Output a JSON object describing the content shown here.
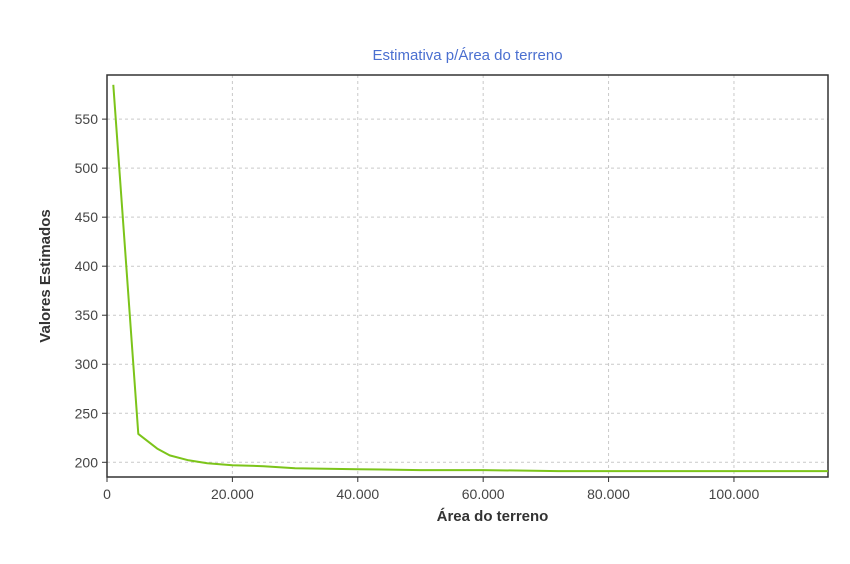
{
  "chart_data": {
    "type": "line",
    "title": "Estimativa p/Área do terreno",
    "xlabel": "Área do terreno",
    "ylabel": "Valores Estimados",
    "xlim": [
      0,
      115000
    ],
    "ylim": [
      185,
      595
    ],
    "x_ticks": [
      {
        "value": 0,
        "label": "0"
      },
      {
        "value": 20000,
        "label": "20.000"
      },
      {
        "value": 40000,
        "label": "40.000"
      },
      {
        "value": 60000,
        "label": "60.000"
      },
      {
        "value": 80000,
        "label": "80.000"
      },
      {
        "value": 100000,
        "label": "100.000"
      }
    ],
    "y_ticks": [
      {
        "value": 200,
        "label": "200"
      },
      {
        "value": 250,
        "label": "250"
      },
      {
        "value": 300,
        "label": "300"
      },
      {
        "value": 350,
        "label": "350"
      },
      {
        "value": 400,
        "label": "400"
      },
      {
        "value": 450,
        "label": "450"
      },
      {
        "value": 500,
        "label": "500"
      },
      {
        "value": 550,
        "label": "550"
      }
    ],
    "grid": true,
    "legend": "none",
    "series": [
      {
        "color": "#7cc41a",
        "x": [
          1000,
          5000,
          8000,
          10000,
          13000,
          16000,
          20000,
          25000,
          30000,
          40000,
          50000,
          60000,
          72000,
          80000,
          100000,
          115000
        ],
        "y": [
          585,
          229,
          214,
          207,
          202,
          199,
          197,
          196,
          194,
          193,
          192,
          192,
          191,
          191,
          191,
          191
        ]
      }
    ]
  }
}
